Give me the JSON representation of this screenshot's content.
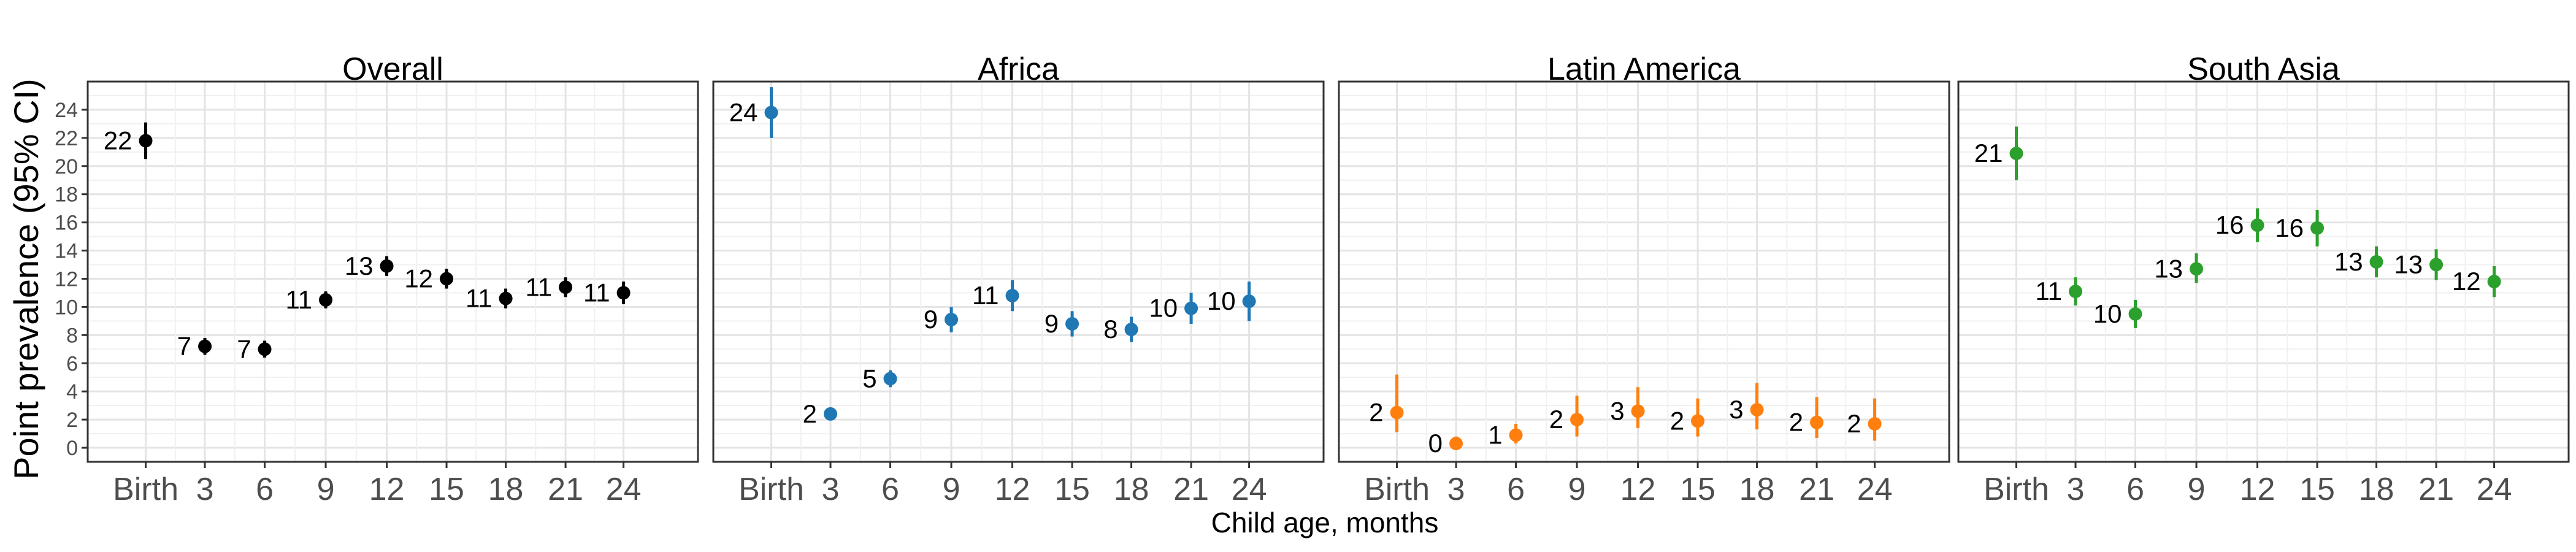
{
  "chart_data": {
    "type": "scatter",
    "subtype": "point-range",
    "ylabel": "Point prevalence (95% CI)",
    "xlabel": "Child age, months",
    "x_categories": [
      "Birth",
      "3",
      "6",
      "9",
      "12",
      "15",
      "18",
      "21",
      "24"
    ],
    "y_ticks": [
      "0",
      "2",
      "4",
      "6",
      "8",
      "10",
      "12",
      "14",
      "16",
      "18",
      "20",
      "22",
      "24"
    ],
    "ylim": [
      -1,
      26
    ],
    "grid": true,
    "panels": [
      {
        "title": "Overall",
        "color": "#000000",
        "values": [
          21.8,
          7.2,
          7.0,
          10.5,
          12.9,
          12.0,
          10.6,
          11.4,
          11.0
        ],
        "lower": [
          20.5,
          6.6,
          6.4,
          9.9,
          12.2,
          11.3,
          9.9,
          10.7,
          10.2
        ],
        "upper": [
          23.1,
          7.8,
          7.6,
          11.1,
          13.6,
          12.7,
          11.3,
          12.1,
          11.8
        ],
        "labels": [
          "22",
          "7",
          "7",
          "11",
          "13",
          "12",
          "11",
          "11",
          "11"
        ]
      },
      {
        "title": "Africa",
        "color": "#1f77b4",
        "values": [
          23.8,
          2.4,
          4.9,
          9.1,
          10.8,
          8.8,
          8.4,
          9.9,
          10.4
        ],
        "lower": [
          22.0,
          2.0,
          4.3,
          8.2,
          9.7,
          7.9,
          7.5,
          8.8,
          9.0
        ],
        "upper": [
          25.6,
          2.8,
          5.5,
          10.0,
          11.9,
          9.7,
          9.3,
          11.0,
          11.8
        ],
        "labels": [
          "24",
          "2",
          "5",
          "9",
          "11",
          "9",
          "8",
          "10",
          "10"
        ]
      },
      {
        "title": "Latin America",
        "color": "#ff7f0e",
        "values": [
          2.5,
          0.3,
          0.9,
          2.0,
          2.6,
          1.9,
          2.7,
          1.8,
          1.7
        ],
        "lower": [
          1.1,
          -0.1,
          0.3,
          0.8,
          1.4,
          0.8,
          1.3,
          0.7,
          0.5
        ],
        "upper": [
          5.2,
          0.8,
          1.7,
          3.7,
          4.3,
          3.5,
          4.6,
          3.6,
          3.5
        ],
        "labels": [
          "2",
          "0",
          "1",
          "2",
          "3",
          "2",
          "3",
          "2",
          "2"
        ]
      },
      {
        "title": "South Asia",
        "color": "#2ca02c",
        "values": [
          20.9,
          11.1,
          9.5,
          12.7,
          15.8,
          15.6,
          13.2,
          13.0,
          11.8
        ],
        "lower": [
          19.0,
          10.1,
          8.5,
          11.7,
          14.6,
          14.3,
          12.1,
          11.9,
          10.7
        ],
        "upper": [
          22.8,
          12.1,
          10.5,
          13.8,
          17.0,
          16.9,
          14.3,
          14.1,
          12.9
        ],
        "labels": [
          "21",
          "11",
          "10",
          "13",
          "16",
          "16",
          "13",
          "13",
          "12"
        ]
      }
    ]
  }
}
